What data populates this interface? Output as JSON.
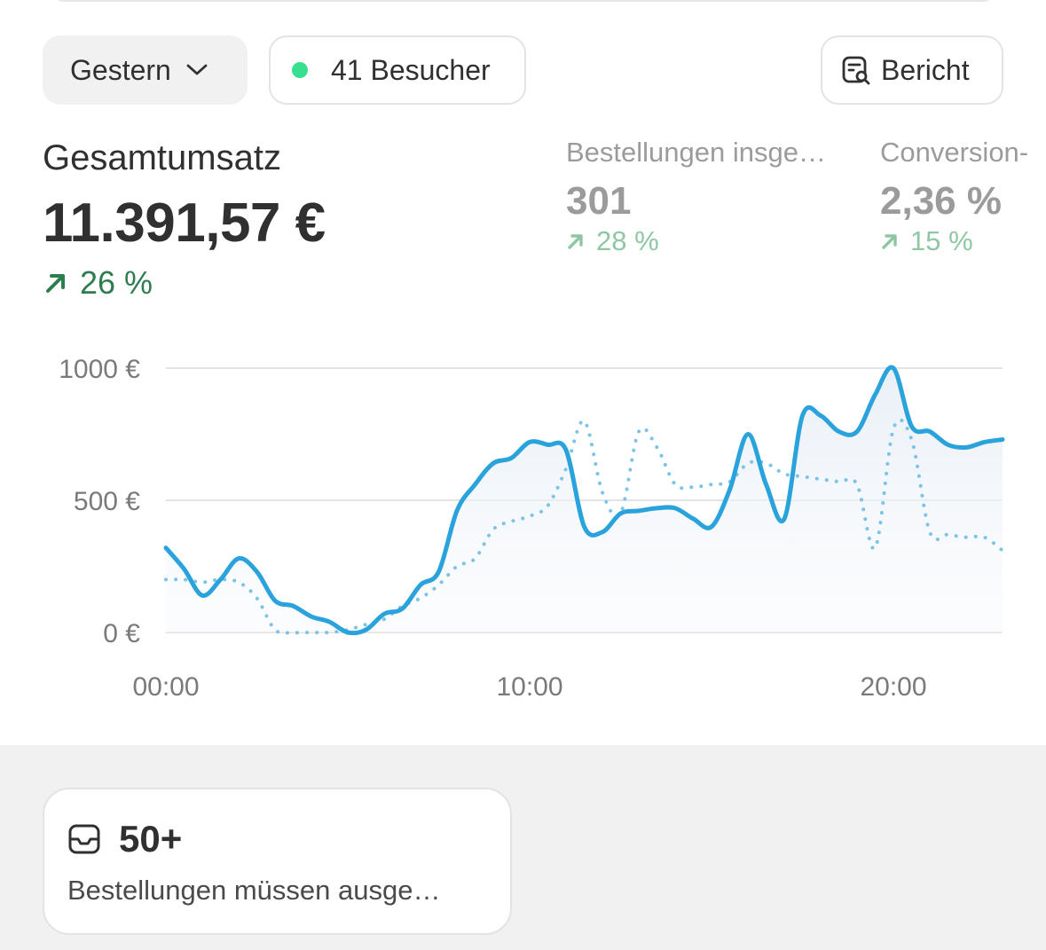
{
  "filters": {
    "date_label": "Gestern",
    "visitors_label": "41 Besucher",
    "report_label": "Bericht"
  },
  "metrics": {
    "main": {
      "label": "Gesamtumsatz",
      "value": "11.391,57 €",
      "delta": "26 %"
    },
    "orders": {
      "label": "Bestellungen insge…",
      "value": "301",
      "delta": "28 %"
    },
    "conversion": {
      "label": "Conversion-",
      "value": "2,36 %",
      "delta": "15 %"
    }
  },
  "colors": {
    "accent_line": "#2aa3dc",
    "positive": "#2e7d4f",
    "positive_muted": "#8fc7a4",
    "live_dot": "#36e08f"
  },
  "chart_data": {
    "type": "line",
    "x_unit": "hour",
    "x": [
      0,
      0.5,
      1,
      1.5,
      2,
      2.5,
      3,
      3.5,
      4,
      4.5,
      5,
      5.5,
      6,
      6.5,
      7,
      7.5,
      8,
      8.5,
      9,
      9.5,
      10,
      10.5,
      11,
      11.5,
      12,
      12.5,
      13,
      13.5,
      14,
      14.5,
      15,
      15.5,
      16,
      16.5,
      17,
      17.5,
      18,
      18.5,
      19,
      19.5,
      20,
      20.5,
      21,
      21.5,
      22,
      22.5,
      23
    ],
    "series": [
      {
        "values": [
          320,
          240,
          140,
          200,
          280,
          230,
          120,
          100,
          60,
          40,
          0,
          10,
          70,
          90,
          180,
          230,
          460,
          560,
          640,
          660,
          720,
          710,
          690,
          400,
          380,
          450,
          460,
          470,
          470,
          430,
          400,
          540,
          750,
          560,
          430,
          820,
          820,
          760,
          760,
          900,
          1000,
          780,
          760,
          710,
          700,
          720,
          730
        ],
        "style": "solid"
      },
      {
        "values": [
          200,
          200,
          190,
          200,
          190,
          130,
          10,
          0,
          0,
          0,
          10,
          30,
          50,
          100,
          130,
          180,
          250,
          280,
          390,
          420,
          440,
          480,
          620,
          800,
          530,
          450,
          760,
          700,
          560,
          550,
          560,
          570,
          640,
          640,
          600,
          590,
          580,
          570,
          560,
          320,
          770,
          730,
          380,
          370,
          360,
          360,
          310
        ],
        "style": "dotted"
      }
    ],
    "y_ticks": [
      "1000 €",
      "500 €",
      "0 €"
    ],
    "x_ticks": [
      "00:00",
      "10:00",
      "20:00"
    ],
    "ylim": [
      0,
      1000
    ],
    "xlim": [
      0,
      23
    ],
    "grid": true
  },
  "todo": {
    "count": "50+",
    "description": "Bestellungen müssen ausge…"
  },
  "icons": {
    "date_chevron": "chevron-down-icon",
    "report": "report-search-icon",
    "trend": "arrow-up-right-icon",
    "inbox": "inbox-icon"
  }
}
